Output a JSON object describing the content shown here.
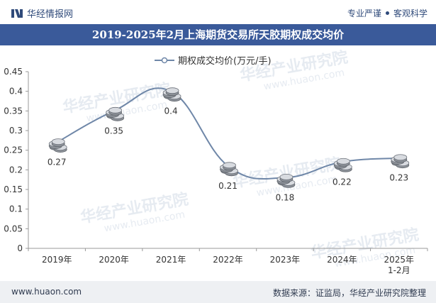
{
  "header": {
    "brand": "华经情报网",
    "slogan_left": "专业严谨",
    "slogan_right": "客观科学"
  },
  "footer": {
    "website": "www.huaon.com",
    "source": "数据来源：证监局，华经产业研究院整理"
  },
  "watermark": {
    "text": "华经产业研究院",
    "url": "www.huaon.com"
  },
  "chart_data": {
    "type": "line",
    "title": "2019-2025年2月上海期货交易所天胶期权成交均价",
    "categories": [
      "2019年",
      "2020年",
      "2021年",
      "2022年",
      "2023年",
      "2024年",
      "2025年\n1-2月"
    ],
    "series": [
      {
        "name": "期权成交均价(万元/手)",
        "values": [
          0.27,
          0.35,
          0.4,
          0.21,
          0.18,
          0.22,
          0.23
        ],
        "color": "#6f87a8"
      }
    ],
    "data_labels": [
      "0.27",
      "0.35",
      "0.4",
      "0.21",
      "0.18",
      "0.22",
      "0.23"
    ],
    "ylim": [
      0,
      0.45
    ],
    "yticks": [
      "0",
      "0.05",
      "0.1",
      "0.15",
      "0.2",
      "0.25",
      "0.3",
      "0.35",
      "0.4",
      "0.45"
    ],
    "xlabel": "",
    "ylabel": "",
    "legend": "top-center",
    "grid": false
  }
}
